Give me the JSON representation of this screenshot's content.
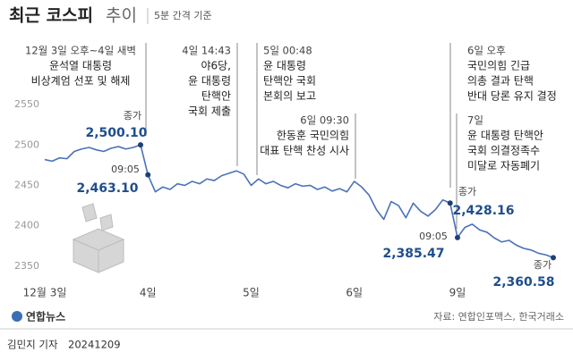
{
  "title": "최근 코스피",
  "title_suffix": "추이",
  "subtitle": "5분 간격 기준",
  "chart_data": {
    "type": "line",
    "categories": [
      "12월 3일",
      null,
      null,
      null,
      null,
      null,
      null,
      null,
      null,
      null,
      null,
      null,
      null,
      null,
      "4일",
      null,
      null,
      null,
      null,
      null,
      null,
      null,
      null,
      null,
      null,
      null,
      null,
      null,
      "5일",
      null,
      null,
      null,
      null,
      null,
      null,
      null,
      null,
      null,
      null,
      null,
      null,
      null,
      "6일",
      null,
      null,
      null,
      null,
      null,
      null,
      null,
      null,
      null,
      null,
      null,
      null,
      null,
      "9일",
      null,
      null,
      null,
      null,
      null,
      null,
      null,
      null,
      null,
      null,
      null,
      null,
      null
    ],
    "values": [
      2482,
      2480,
      2484,
      2483,
      2492,
      2495,
      2497,
      2494,
      2492,
      2496,
      2498,
      2495,
      2497,
      2500.1,
      2463.1,
      2442,
      2448,
      2445,
      2452,
      2450,
      2455,
      2452,
      2458,
      2456,
      2462,
      2465,
      2468,
      2464,
      2450,
      2458,
      2452,
      2455,
      2450,
      2447,
      2452,
      2449,
      2450,
      2445,
      2448,
      2443,
      2446,
      2442,
      2455,
      2448,
      2438,
      2420,
      2408,
      2430,
      2425,
      2410,
      2428,
      2418,
      2412,
      2420,
      2432,
      2428.16,
      2385.47,
      2398,
      2402,
      2395,
      2392,
      2385,
      2380,
      2382,
      2376,
      2372,
      2370,
      2366,
      2364,
      2360.58
    ],
    "value_labels": [
      null,
      null,
      null,
      null,
      null,
      null,
      null,
      null,
      null,
      null,
      null,
      null,
      null,
      "2,500.10",
      "2,463.10",
      null,
      null,
      null,
      null,
      null,
      null,
      null,
      null,
      null,
      null,
      null,
      null,
      null,
      null,
      null,
      null,
      null,
      null,
      null,
      null,
      null,
      null,
      null,
      null,
      null,
      null,
      null,
      null,
      null,
      null,
      null,
      null,
      null,
      null,
      null,
      null,
      null,
      null,
      null,
      null,
      "2,428.16",
      "2,385.47",
      null,
      null,
      null,
      null,
      null,
      null,
      null,
      null,
      null,
      null,
      null,
      null,
      "2,360.58"
    ],
    "point_notes": [
      null,
      null,
      null,
      null,
      null,
      null,
      null,
      null,
      null,
      null,
      null,
      null,
      null,
      "종가",
      "09:05",
      null,
      null,
      null,
      null,
      null,
      null,
      null,
      null,
      null,
      null,
      null,
      null,
      null,
      null,
      null,
      null,
      null,
      null,
      null,
      null,
      null,
      null,
      null,
      null,
      null,
      null,
      null,
      null,
      null,
      null,
      null,
      null,
      null,
      null,
      null,
      null,
      null,
      null,
      null,
      null,
      "종가",
      "09:05",
      null,
      null,
      null,
      null,
      null,
      null,
      null,
      null,
      null,
      null,
      null,
      null,
      "종가"
    ],
    "color": "#4a72b8",
    "ylim": [
      2330,
      2560
    ],
    "yticks": [
      2350,
      2400,
      2450,
      2500,
      2550
    ],
    "grid": false,
    "annotations": [
      {
        "time": "12월 3일 오후~4일 새벽",
        "lines": [
          "윤석열 대통령",
          "비상계엄 선포 및 해제"
        ]
      },
      {
        "time": "4일 14:43",
        "lines": [
          "야6당,",
          "윤 대통령",
          "탄핵안",
          "국회 제출"
        ]
      },
      {
        "time": "5일 00:48",
        "lines": [
          "윤 대통령",
          "탄핵안 국회",
          "본회의 보고"
        ]
      },
      {
        "time": "6일 09:30",
        "lines": [
          "한동훈 국민의힘",
          "대표 탄핵 찬성 시사"
        ]
      },
      {
        "time": "6일 오후",
        "lines": [
          "국민의힘 긴급",
          "의총 결과 탄핵",
          "반대 당론 유지 결정"
        ]
      },
      {
        "time": "7일",
        "lines": [
          "윤 대통령 탄핵안",
          "국회 의결정족수",
          "미달로 자동폐기"
        ]
      }
    ]
  },
  "logo": "연합뉴스",
  "source": "자료: 연합인포맥스, 한국거래소",
  "byline": "김민지 기자",
  "date": "20241209"
}
